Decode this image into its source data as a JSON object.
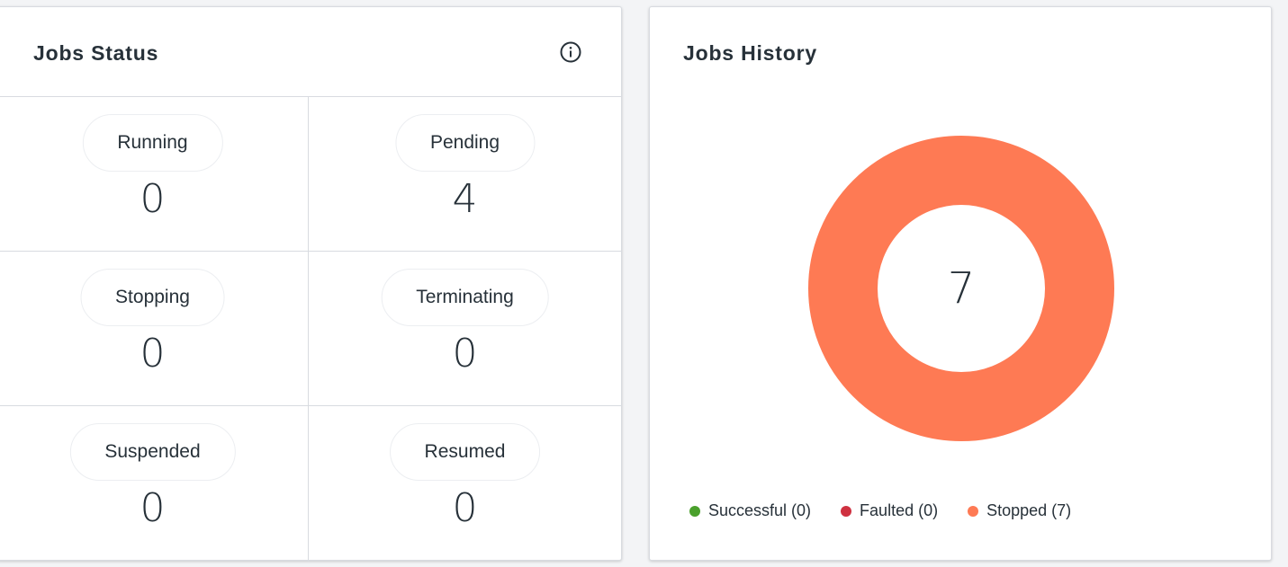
{
  "jobs_status": {
    "title": "Jobs Status",
    "info_icon": "info-circle-icon",
    "items": [
      {
        "label": "Running",
        "count": "0"
      },
      {
        "label": "Pending",
        "count": "4"
      },
      {
        "label": "Stopping",
        "count": "0"
      },
      {
        "label": "Terminating",
        "count": "0"
      },
      {
        "label": "Suspended",
        "count": "0"
      },
      {
        "label": "Resumed",
        "count": "0"
      }
    ]
  },
  "jobs_history": {
    "title": "Jobs History",
    "total": "7",
    "legend": [
      {
        "label": "Successful (0)",
        "color": "#4aa02c"
      },
      {
        "label": "Faulted (0)",
        "color": "#cf3140"
      },
      {
        "label": "Stopped (7)",
        "color": "#fe7a54"
      }
    ]
  },
  "chart_data": {
    "type": "pie",
    "categories": [
      "Successful",
      "Faulted",
      "Stopped"
    ],
    "values": [
      0,
      0,
      7
    ],
    "colors": [
      "#4aa02c",
      "#cf3140",
      "#fe7a54"
    ],
    "title": "Jobs History",
    "legend": "bottom-left"
  }
}
